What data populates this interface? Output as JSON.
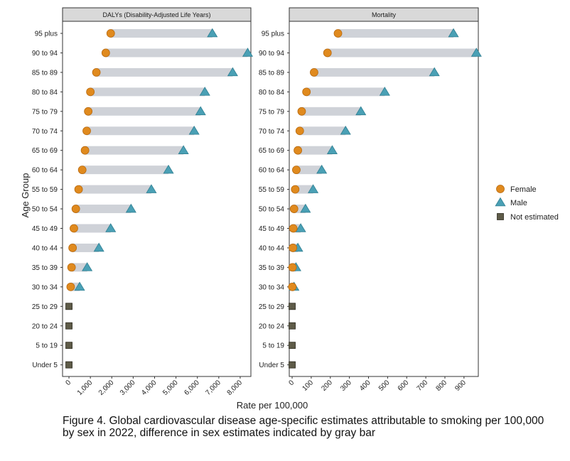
{
  "chart_data": {
    "type": "dumbbell",
    "ylabel": "Age Group",
    "xlabel": "Rate per 100,000",
    "categories": [
      "95 plus",
      "90 to 94",
      "85 to 89",
      "80 to 84",
      "75 to 79",
      "70 to 74",
      "65 to 69",
      "60 to 64",
      "55 to 59",
      "50 to 54",
      "45 to 49",
      "40 to 44",
      "35 to 39",
      "30 to 34",
      "25 to 29",
      "20 to 24",
      "5 to 19",
      "Under 5"
    ],
    "panels": [
      {
        "title": "DALYs (Disability-Adjusted Life Years)",
        "xlim": [
          -300,
          8500
        ],
        "ticks": [
          0,
          1000,
          2000,
          3000,
          4000,
          5000,
          6000,
          7000,
          8000
        ],
        "tick_labels": [
          "0",
          "1,000",
          "2,000",
          "3,000",
          "4,000",
          "5,000",
          "6,000",
          "7,000",
          "8,000"
        ],
        "series": [
          {
            "name": "Female",
            "values": [
              1950,
              1720,
              1280,
              1000,
              900,
              830,
              750,
              620,
              450,
              320,
              230,
              170,
              120,
              80,
              null,
              null,
              null,
              null
            ]
          },
          {
            "name": "Male",
            "values": [
              6700,
              8350,
              7650,
              6350,
              6150,
              5850,
              5350,
              4650,
              3850,
              2900,
              1950,
              1400,
              850,
              500,
              null,
              null,
              null,
              null
            ]
          }
        ],
        "not_estimated": [
          "25 to 29",
          "20 to 24",
          "5 to 19",
          "Under 5"
        ]
      },
      {
        "title": "Mortality",
        "xlim": [
          -15,
          975
        ],
        "ticks": [
          0,
          100,
          200,
          300,
          400,
          500,
          600,
          700,
          800,
          900
        ],
        "tick_labels": [
          "0",
          "100",
          "200",
          "300",
          "400",
          "500",
          "600",
          "700",
          "800",
          "900"
        ],
        "series": [
          {
            "name": "Female",
            "values": [
              240,
              185,
              115,
              75,
              50,
              40,
              30,
              22,
              16,
              10,
              6,
              4,
              2,
              1,
              null,
              null,
              null,
              null
            ]
          },
          {
            "name": "Male",
            "values": [
              845,
              965,
              745,
              485,
              360,
              280,
              210,
              155,
              110,
              70,
              45,
              30,
              20,
              10,
              null,
              null,
              null,
              null
            ]
          }
        ],
        "not_estimated": [
          "25 to 29",
          "20 to 24",
          "5 to 19",
          "Under 5"
        ]
      }
    ],
    "legend": {
      "position": "right",
      "entries": [
        {
          "name": "Female",
          "shape": "circle"
        },
        {
          "name": "Male",
          "shape": "triangle"
        },
        {
          "name": "Not estimated",
          "shape": "square"
        }
      ]
    }
  },
  "colors": {
    "female": "#e08a1e",
    "male": "#4aa0b5",
    "not_estimated": "#5e5b48",
    "bar": "#cfd2d8"
  },
  "caption": {
    "line1": "Figure 4. Global cardiovascular disease age-specific estimates attributable to smoking per 100,000",
    "line2": "by sex in 2022, difference in sex estimates indicated by gray bar"
  }
}
